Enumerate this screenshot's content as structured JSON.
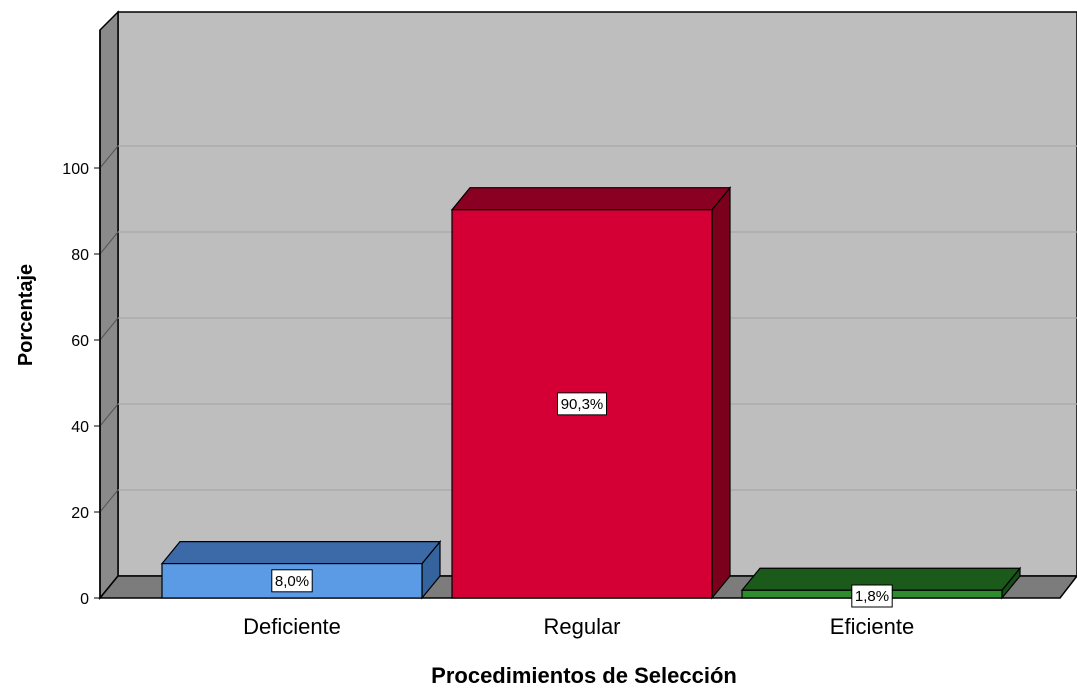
{
  "chart_data": {
    "type": "bar",
    "categories": [
      "Deficiente",
      "Regular",
      "Eficiente"
    ],
    "values": [
      8.0,
      90.3,
      1.8
    ],
    "data_labels": [
      "8,0%",
      "90,3%",
      "1,8%"
    ],
    "xlabel": "Procedimientos de Selección",
    "ylabel": "Porcentaje",
    "ylim": [
      0,
      100
    ],
    "yticks": [
      0,
      20,
      40,
      60,
      80,
      100
    ],
    "grid": true,
    "style": "3d",
    "colors": {
      "front": [
        "#5b9be6",
        "#d40035",
        "#2e8b2e"
      ],
      "top": [
        "#3c6aa8",
        "#8a0022",
        "#1c5a1c"
      ],
      "side": [
        "#34639e",
        "#7a001c",
        "#174d17"
      ],
      "wall": "#bebebe",
      "floor": "#7c7c7c",
      "side_wall": "#8a8a8a"
    }
  }
}
